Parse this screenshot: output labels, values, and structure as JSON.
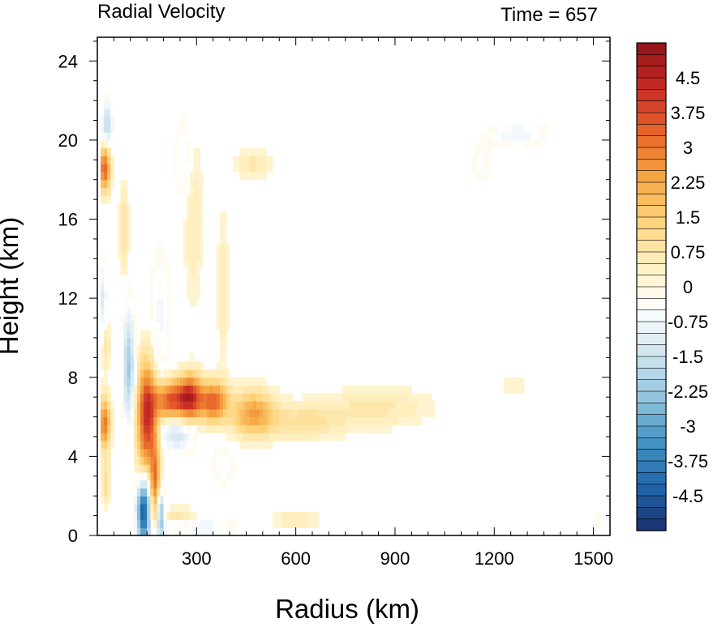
{
  "chart_data": {
    "type": "heatmap",
    "title": "Radial Velocity",
    "right_title": "Time = 657",
    "xlabel": "Radius (km)",
    "ylabel": "Height (km)",
    "xlim": [
      0,
      1550
    ],
    "ylim": [
      0,
      25.2
    ],
    "x_ticks": [
      300,
      600,
      900,
      1200,
      1500
    ],
    "y_ticks": [
      0,
      4,
      8,
      12,
      16,
      20,
      24
    ],
    "colorbar": {
      "min": -5.25,
      "max": 5.25,
      "step": 0.25,
      "labels": [
        "4.5",
        "3.75",
        "3",
        "2.25",
        "1.5",
        "0.75",
        "0",
        "-0.75",
        "-1.5",
        "-2.25",
        "-3",
        "-3.75",
        "-4.5"
      ],
      "label_values": [
        4.5,
        3.75,
        3,
        2.25,
        1.5,
        0.75,
        0,
        -0.75,
        -1.5,
        -2.25,
        -3,
        -3.75,
        -4.5
      ],
      "colors": [
        "#1a2f6b",
        "#2166ac",
        "#4393c3",
        "#92c5de",
        "#d1e5f0",
        "#ffffff",
        "#fff0c0",
        "#fdd27a",
        "#f4a340",
        "#e8632a",
        "#c62b26",
        "#8f1218"
      ]
    },
    "features": [
      {
        "x": 150,
        "y": 6.0,
        "sx": 20,
        "sy": 1.9,
        "v": 4.3
      },
      {
        "x": 175,
        "y": 2.6,
        "sx": 10,
        "sy": 1.6,
        "v": 2.8
      },
      {
        "x": 220,
        "y": 6.8,
        "sx": 35,
        "sy": 0.7,
        "v": 3.6
      },
      {
        "x": 280,
        "y": 7.0,
        "sx": 25,
        "sy": 0.8,
        "v": 3.9
      },
      {
        "x": 350,
        "y": 6.8,
        "sx": 30,
        "sy": 0.7,
        "v": 3.3
      },
      {
        "x": 470,
        "y": 6.2,
        "sx": 45,
        "sy": 0.8,
        "v": 2.3
      },
      {
        "x": 620,
        "y": 5.8,
        "sx": 90,
        "sy": 0.6,
        "v": 1.0
      },
      {
        "x": 850,
        "y": 6.5,
        "sx": 110,
        "sy": 0.7,
        "v": 0.7
      },
      {
        "x": 1260,
        "y": 7.6,
        "sx": 30,
        "sy": 0.5,
        "v": 0.4
      },
      {
        "x": 22,
        "y": 18.6,
        "sx": 12,
        "sy": 0.8,
        "v": 3.5
      },
      {
        "x": 22,
        "y": 5.7,
        "sx": 12,
        "sy": 0.9,
        "v": 3.0
      },
      {
        "x": 22,
        "y": 9.8,
        "sx": 10,
        "sy": 1.0,
        "v": 1.2
      },
      {
        "x": 25,
        "y": 2.6,
        "sx": 10,
        "sy": 0.8,
        "v": 1.0
      },
      {
        "x": 80,
        "y": 15.5,
        "sx": 10,
        "sy": 1.6,
        "v": 0.9
      },
      {
        "x": 230,
        "y": 1.0,
        "sx": 50,
        "sy": 0.3,
        "v": 0.8
      },
      {
        "x": 290,
        "y": 16.0,
        "sx": 20,
        "sy": 3.0,
        "v": 0.6
      },
      {
        "x": 380,
        "y": 12.5,
        "sx": 12,
        "sy": 2.8,
        "v": 0.6
      },
      {
        "x": 470,
        "y": 18.8,
        "sx": 40,
        "sy": 0.5,
        "v": 0.7
      },
      {
        "x": 600,
        "y": 0.8,
        "sx": 50,
        "sy": 0.3,
        "v": 0.6
      },
      {
        "x": 140,
        "y": 1.2,
        "sx": 14,
        "sy": 1.1,
        "v": -4.8
      },
      {
        "x": 190,
        "y": 1.0,
        "sx": 10,
        "sy": 0.8,
        "v": -3.2
      },
      {
        "x": 95,
        "y": 8.5,
        "sx": 12,
        "sy": 2.0,
        "v": -2.2
      },
      {
        "x": 15,
        "y": 11.5,
        "sx": 10,
        "sy": 1.6,
        "v": -1.3
      },
      {
        "x": 30,
        "y": 20.8,
        "sx": 12,
        "sy": 0.8,
        "v": -1.8
      },
      {
        "x": 240,
        "y": 5.3,
        "sx": 35,
        "sy": 0.7,
        "v": -1.6
      },
      {
        "x": 320,
        "y": 0.4,
        "sx": 60,
        "sy": 0.3,
        "v": -0.9
      },
      {
        "x": 190,
        "y": 11.0,
        "sx": 20,
        "sy": 2.5,
        "v": -0.7
      },
      {
        "x": 380,
        "y": 3.5,
        "sx": 30,
        "sy": 0.7,
        "v": -0.5
      },
      {
        "x": 1270,
        "y": 20.3,
        "sx": 55,
        "sy": 0.4,
        "v": -0.9
      },
      {
        "x": 1160,
        "y": 18.8,
        "sx": 25,
        "sy": 0.8,
        "v": -0.4
      },
      {
        "x": 1510,
        "y": 0.8,
        "sx": 10,
        "sy": 0.3,
        "v": -0.4
      },
      {
        "x": 260,
        "y": 19.0,
        "sx": 18,
        "sy": 1.5,
        "v": -0.7
      }
    ]
  }
}
